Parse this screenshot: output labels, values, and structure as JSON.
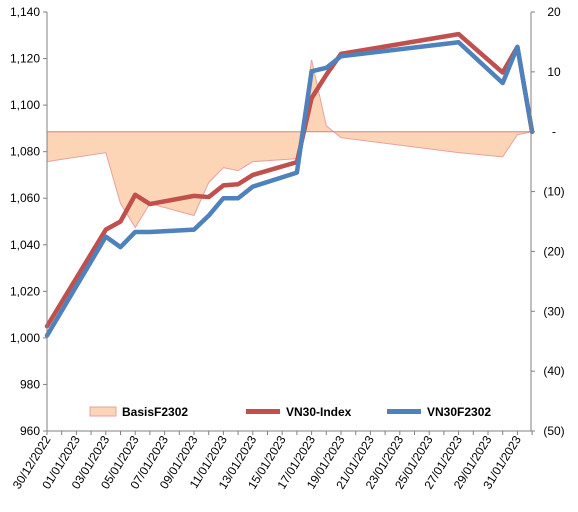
{
  "chart_data": {
    "type": "line",
    "x_tick_labels": [
      "30/12/2022",
      "01/01/2023",
      "03/01/2023",
      "05/01/2023",
      "07/01/2023",
      "09/01/2023",
      "11/01/2023",
      "13/01/2023",
      "15/01/2023",
      "17/01/2023",
      "19/01/2023",
      "21/01/2023",
      "23/01/2023",
      "25/01/2023",
      "27/01/2023",
      "29/01/2023",
      "31/01/2023"
    ],
    "left_axis": {
      "ylim": [
        960,
        1140
      ],
      "ticks": [
        960,
        980,
        1000,
        1020,
        1040,
        1060,
        1080,
        1100,
        1120,
        1140
      ],
      "tick_labels": [
        "960",
        "980",
        "1,000",
        "1,020",
        "1,040",
        "1,060",
        "1,080",
        "1,100",
        "1,120",
        "1,140"
      ]
    },
    "right_axis": {
      "ylim": [
        -50,
        20
      ],
      "ticks": [
        -50,
        -40,
        -30,
        -20,
        -10,
        0,
        10,
        20
      ],
      "tick_labels": [
        "(50)",
        "(40)",
        "(30)",
        "(20)",
        "(10)",
        "-",
        "10",
        "20"
      ]
    },
    "series": [
      {
        "name": "BasisF2302",
        "type": "area",
        "axis": "right",
        "color": "#fbd5b5",
        "line_color": "#e8a0a0",
        "x": [
          "2022-12-30",
          "2023-01-03",
          "2023-01-04",
          "2023-01-05",
          "2023-01-06",
          "2023-01-09",
          "2023-01-10",
          "2023-01-11",
          "2023-01-12",
          "2023-01-13",
          "2023-01-16",
          "2023-01-17",
          "2023-01-18",
          "2023-01-19",
          "2023-01-27",
          "2023-01-30",
          "2023-01-31",
          "2023-02-01"
        ],
        "values": [
          -5,
          -3.5,
          -12,
          -16,
          -12,
          -14,
          -8.5,
          -6,
          -6.5,
          -5,
          -4.5,
          12,
          1,
          -1,
          -3.5,
          -4.2,
          -0.5,
          0
        ]
      },
      {
        "name": "VN30-Index",
        "type": "line",
        "axis": "left",
        "color": "#c0504d",
        "x": [
          "2022-12-30",
          "2023-01-03",
          "2023-01-04",
          "2023-01-05",
          "2023-01-06",
          "2023-01-09",
          "2023-01-10",
          "2023-01-11",
          "2023-01-12",
          "2023-01-13",
          "2023-01-16",
          "2023-01-17",
          "2023-01-18",
          "2023-01-19",
          "2023-01-27",
          "2023-01-30",
          "2023-01-31",
          "2023-02-01"
        ],
        "values": [
          1005,
          1046.5,
          1050,
          1061.5,
          1057.5,
          1061,
          1060.5,
          1065.5,
          1066,
          1070,
          1075.5,
          1103,
          1113,
          1122,
          1130.5,
          1114,
          1125,
          1088.5
        ]
      },
      {
        "name": "VN30F2302",
        "type": "line",
        "axis": "left",
        "color": "#4f81bd",
        "x": [
          "2022-12-30",
          "2023-01-03",
          "2023-01-04",
          "2023-01-05",
          "2023-01-06",
          "2023-01-09",
          "2023-01-10",
          "2023-01-11",
          "2023-01-12",
          "2023-01-13",
          "2023-01-16",
          "2023-01-17",
          "2023-01-18",
          "2023-01-19",
          "2023-01-27",
          "2023-01-30",
          "2023-01-31",
          "2023-02-01"
        ],
        "values": [
          1001,
          1043.5,
          1039,
          1045.5,
          1045.5,
          1046.5,
          1052.5,
          1060,
          1060,
          1065,
          1071,
          1114.5,
          1116,
          1121,
          1127,
          1109.5,
          1125,
          1088.5
        ]
      }
    ],
    "legend_position": "bottom",
    "grid": false
  }
}
